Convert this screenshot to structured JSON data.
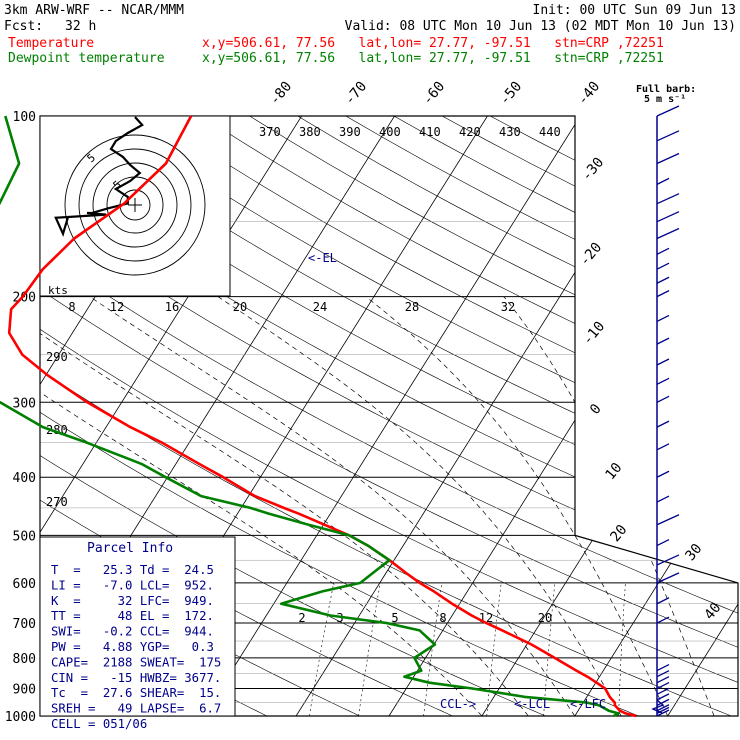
{
  "header": {
    "model": "3km ARW-WRF -- NCAR/MMM",
    "init": "Init: 00 UTC Sun 09 Jun 13",
    "fcst_label": "Fcst:",
    "fcst_value": "32 h",
    "valid": "Valid: 08 UTC Mon 10 Jun 13 (02 MDT Mon 10 Jun 13)",
    "temp_label": "Temperature",
    "dew_label": "Dewpoint temperature",
    "loc": "x,y=506.61, 77.56   lat,lon= 27.77, -97.51   stn=CRP ,72251",
    "loc_dew": "x,y=506.61, 77.56   lat,lon= 27.77, -97.51   stn=CRP ,72251",
    "temp_color": "#ff0000",
    "dew_color": "#008000",
    "wind_label_1": "Full barb:",
    "wind_label_2": "5 m s⁻¹"
  },
  "chart_data": {
    "type": "line",
    "chart_kind": "skew-T log-P sounding",
    "pressure_ticks": [
      "100",
      "200",
      "300",
      "400",
      "500",
      "600",
      "700",
      "800",
      "900",
      "1000"
    ],
    "isotherm_labels": [
      "-80",
      "-70",
      "-60",
      "-50",
      "-40",
      "-30",
      "-20",
      "-10",
      "0",
      "10",
      "20",
      "30",
      "40"
    ],
    "theta_labels": [
      "370",
      "380",
      "390",
      "400",
      "410",
      "420",
      "430",
      "440"
    ],
    "theta_left_labels": [
      "290",
      "280",
      "270"
    ],
    "mixing_ratio_labels": [
      "2",
      "3",
      "5",
      "8",
      "12",
      "20"
    ],
    "grid": true,
    "series": [
      {
        "name": "Temperature",
        "color": "#ff0000",
        "p": [
          1000,
          990,
          980,
          960,
          950,
          930,
          900,
          880,
          860,
          840,
          800,
          760,
          720,
          700,
          680,
          650,
          620,
          600,
          580,
          550,
          520,
          500,
          480,
          460,
          450,
          430,
          400,
          380,
          350,
          330,
          300,
          270,
          250,
          230,
          210,
          200,
          180,
          160,
          140,
          120,
          100
        ],
        "t": [
          26.6,
          25.3,
          24.5,
          23.6,
          23.4,
          22.5,
          21.4,
          20.1,
          18.7,
          17.1,
          13.9,
          10.5,
          6.4,
          4.2,
          2.1,
          -0.8,
          -3.6,
          -5.7,
          -7.6,
          -10.5,
          -13.8,
          -16.5,
          -19.9,
          -23.4,
          -25.4,
          -29.3,
          -34.0,
          -37.5,
          -43.0,
          -47.4,
          -53.7,
          -59.9,
          -63.9,
          -66.8,
          -68.2,
          -67.8,
          -67.5,
          -66.2,
          -63.2,
          -61.4,
          -61.9
        ]
      },
      {
        "name": "Dewpoint temperature",
        "color": "#008000",
        "p": [
          1000,
          990,
          980,
          960,
          950,
          930,
          900,
          880,
          860,
          840,
          800,
          760,
          720,
          700,
          680,
          650,
          620,
          600,
          580,
          550,
          520,
          500,
          480,
          460,
          450,
          430,
          400,
          380,
          350,
          330,
          300,
          270,
          250,
          230,
          210,
          200,
          180,
          160,
          140,
          120,
          100
        ],
        "t": [
          24.2,
          24.5,
          23.3,
          21.9,
          20.4,
          13.5,
          7.1,
          2.1,
          -1.0,
          0.4,
          -1.2,
          0.1,
          -2.5,
          -6.5,
          -13.1,
          -19.2,
          -15.6,
          -12.1,
          -11.5,
          -10.5,
          -13.8,
          -16.5,
          -21.6,
          -26.6,
          -29.0,
          -35.1,
          -40.2,
          -43.7,
          -51.1,
          -56.8,
          -63.1,
          -72.7,
          -79.1,
          -79.0,
          -76.4,
          -75.8,
          -76.7,
          -78.2,
          -76.6,
          -77.2,
          -81.9
        ]
      }
    ],
    "annotations": [
      {
        "text": "<-EL",
        "p": 172
      },
      {
        "text": "CCL->",
        "p": 944
      },
      {
        "text": "<-LCL",
        "p": 952
      },
      {
        "text": "<-LFC",
        "p": 949
      }
    ],
    "hodograph": {
      "units": "kts",
      "ring_labels": [
        "5",
        "5"
      ],
      "u": [
        -28,
        -30,
        -33,
        -12,
        -20,
        -18,
        -11,
        -3,
        -3,
        -8,
        -2,
        2,
        -2,
        -5,
        -10,
        -8,
        -3,
        3,
        0
      ],
      "v": [
        -8,
        -18,
        -8,
        -6,
        -5,
        -5,
        -2,
        1,
        5,
        10,
        15,
        20,
        25,
        30,
        35,
        40,
        45,
        50,
        55
      ]
    },
    "wind_barb_pressures": [
      100,
      110,
      120,
      130,
      140,
      150,
      160,
      170,
      180,
      190,
      200,
      220,
      240,
      260,
      280,
      300,
      330,
      360,
      400,
      440,
      480,
      520,
      560,
      600,
      650,
      700,
      750,
      800,
      820,
      840,
      860,
      880,
      900,
      920,
      940,
      960,
      980,
      990,
      1000
    ],
    "wind_barb_speeds": [
      10,
      10,
      10,
      5,
      10,
      10,
      10,
      5,
      5,
      5,
      5,
      5,
      5,
      5,
      5,
      5,
      5,
      5,
      5,
      5,
      10,
      5,
      10,
      10,
      5,
      5,
      0,
      0,
      0,
      5,
      5,
      5,
      5,
      5,
      5,
      5,
      5,
      5,
      5
    ]
  },
  "parcel": {
    "title": "Parcel Info",
    "rows": [
      "T  =   25.3 Td =  24.5",
      "LI =   -7.0 LCL=  952.",
      "K  =     32 LFC=  949.",
      "TT =     48 EL =  172.",
      "SWI=   -0.2 CCL=  944.",
      "PW =   4.88 YGP=   0.3",
      "CAPE=  2188 SWEAT=  175",
      "CIN =   -15 HWBZ= 3677.",
      "Tc  =  27.6 SHEAR=  15.",
      "SREH =   49 LAPSE=  6.7",
      "CELL = 051/06"
    ]
  }
}
